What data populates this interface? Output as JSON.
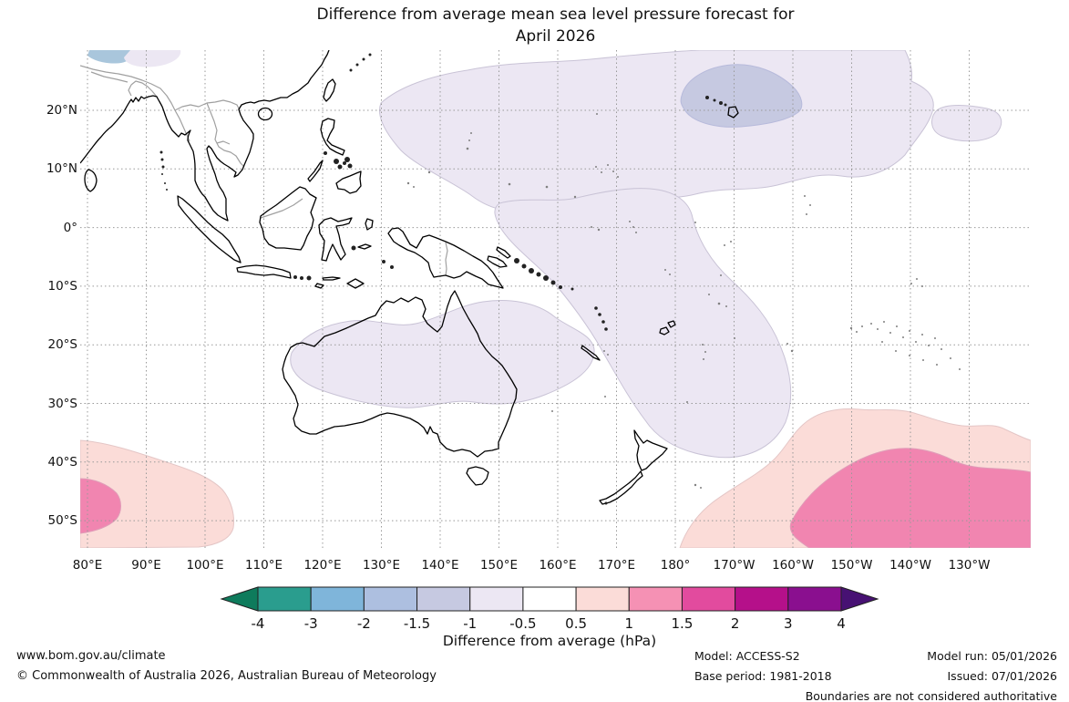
{
  "title": {
    "line1": "Difference from average mean sea level pressure forecast for",
    "line2": "April 2026"
  },
  "map": {
    "lat_labels": [
      "20°N",
      "10°N",
      "0°",
      "10°S",
      "20°S",
      "30°S",
      "40°S",
      "50°S"
    ],
    "lon_labels": [
      "80°E",
      "90°E",
      "100°E",
      "110°E",
      "120°E",
      "130°E",
      "140°E",
      "150°E",
      "160°E",
      "170°E",
      "180°",
      "170°W",
      "160°W",
      "150°W",
      "140°W",
      "130°W"
    ]
  },
  "colorbar": {
    "tick_labels": [
      "-4",
      "-3",
      "-2",
      "-1.5",
      "-1",
      "-0.5",
      "0.5",
      "1",
      "1.5",
      "2",
      "3",
      "4"
    ],
    "segment_colors": [
      "#2a9d8e",
      "#7fb5da",
      "#adbfe0",
      "#c6c9e1",
      "#ece7f3",
      "#ffffff",
      "#fbdcd8",
      "#f591b4",
      "#e24b9e",
      "#b5108a",
      "#8a0f8f"
    ],
    "arrow_left_color": "#0e7b5c",
    "arrow_right_color": "#471173",
    "label": "Difference from average (hPa)"
  },
  "colors": {
    "anom_neg_mild": "#ece7f3",
    "anom_neg_moderate": "#c6c9e1",
    "anom_pos_mild": "#fbdcd8",
    "anom_pos_moderate": "#f185b0",
    "himalaya_blue": "#a9c6dc",
    "coastline": "#000000",
    "border": "#a0a0a0",
    "gridline": "#999999",
    "region_edge": "#bbb5c5"
  },
  "footer": {
    "url": "www.bom.gov.au/climate",
    "copyright": "© Commonwealth of Australia 2026, Australian Bureau of Meteorology",
    "model_label": "Model: ACCESS-S2",
    "base_period_label": "Base period: 1981-2018",
    "model_run_label": "Model run: 05/01/2026",
    "issued_label": "Issued: 07/01/2026",
    "disclaimer": "Boundaries are not considered authoritative"
  },
  "chart_data": {
    "type": "heatmap",
    "title": "Difference from average mean sea level pressure forecast for April 2026",
    "units": "hPa",
    "xlabel": "longitude",
    "ylabel": "latitude",
    "x_ticks": [
      "80°E",
      "90°E",
      "100°E",
      "110°E",
      "120°E",
      "130°E",
      "140°E",
      "150°E",
      "160°E",
      "170°E",
      "180°",
      "170°W",
      "160°W",
      "150°W",
      "140°W",
      "130°W"
    ],
    "y_ticks": [
      "20°N",
      "10°N",
      "0°",
      "10°S",
      "20°S",
      "30°S",
      "40°S",
      "50°S"
    ],
    "scale_breaks": [
      -4,
      -3,
      -2,
      -1.5,
      -1,
      -0.5,
      0.5,
      1,
      1.5,
      2,
      3,
      4
    ],
    "regions": [
      {
        "area": "Subtropical and tropical North Pacific (approx 130E-150W, 0-28N)",
        "anomaly_hpa": "-1 to -0.5"
      },
      {
        "area": "North Pacific north-west of Hawaii (approx 178E-162W, 17-26N)",
        "anomaly_hpa": "-1.5 to -1"
      },
      {
        "area": "Coral Sea extending south-east to near New Zealand (approx 150E-170W, 0-40S)",
        "anomaly_hpa": "-1 to -0.5"
      },
      {
        "area": "Northern and central Australia (approx 115-148E, 17-32S)",
        "anomaly_hpa": "-1 to -0.5"
      },
      {
        "area": "Southern Indian Ocean, bottom-left corner (approx 80-105E, 37-55S)",
        "anomaly_hpa": "0.5 to 1",
        "core": "1 to 1.5 near 80-86E, 43-50S"
      },
      {
        "area": "Southern Pacific, bottom-right corner (approx 165W-120W, 35-55S)",
        "anomaly_hpa": "0.5 to 1",
        "core": "1 to 1.5 near 150W-120W, 42-55S"
      },
      {
        "area": "Remainder of domain",
        "anomaly_hpa": "-0.5 to 0.5"
      }
    ]
  }
}
